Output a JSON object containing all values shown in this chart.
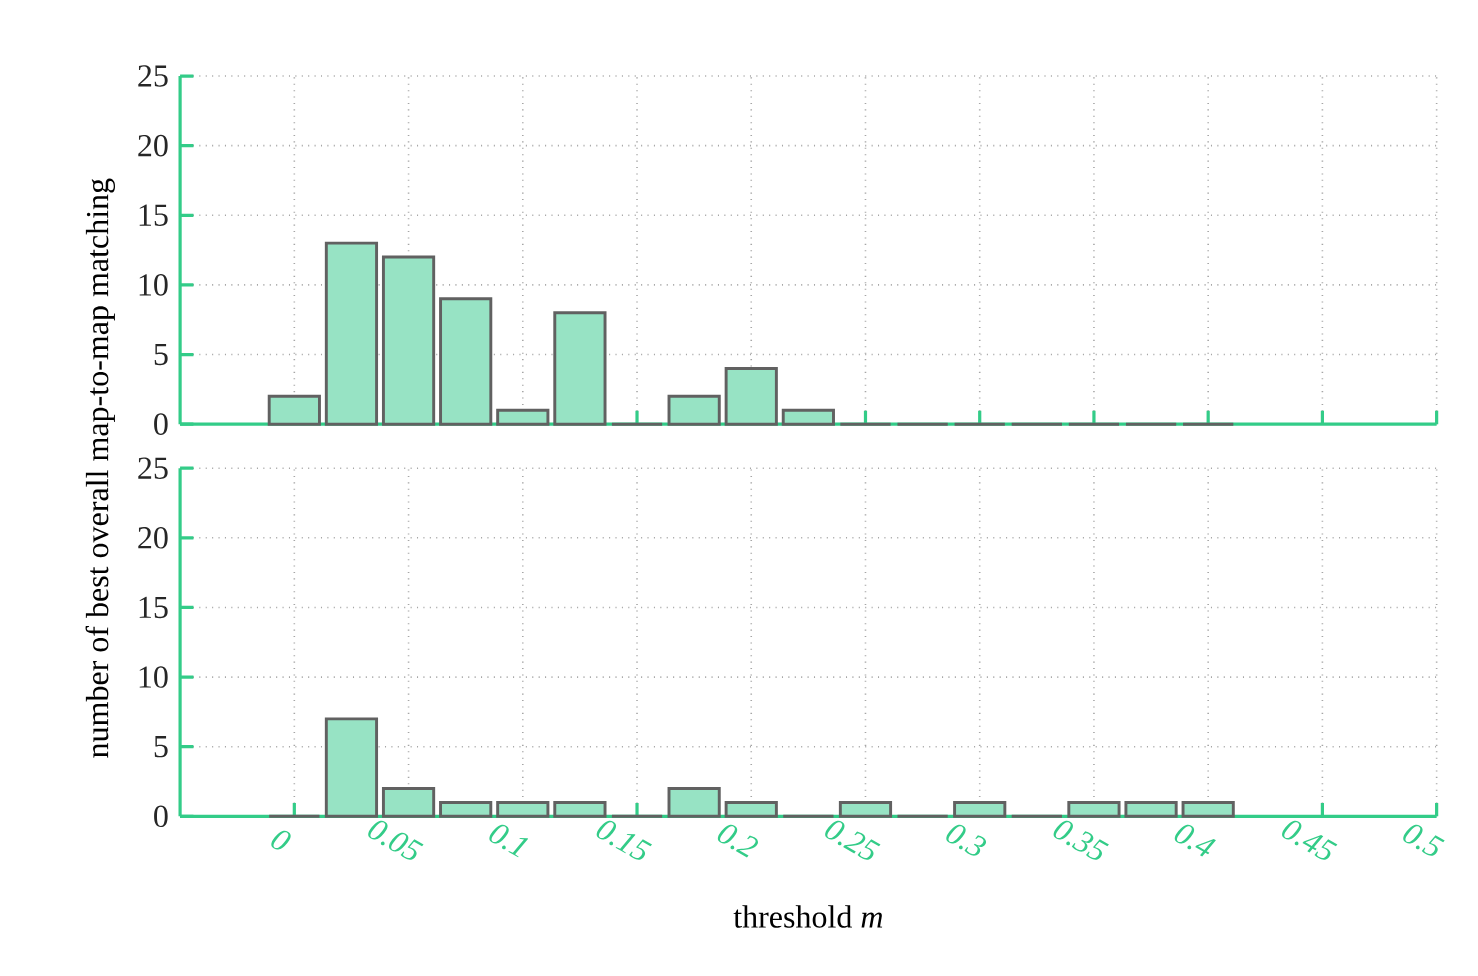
{
  "chart_data": [
    {
      "type": "histogram",
      "bins": [
        -0.0125,
        0.0125,
        0.0375,
        0.0625,
        0.0875,
        0.1125,
        0.1375,
        0.1625,
        0.1875,
        0.2125,
        0.2375,
        0.2625,
        0.2875,
        0.3125,
        0.3375,
        0.3625,
        0.3875,
        0.4125
      ],
      "values": [
        2,
        13,
        12,
        9,
        1,
        8,
        0,
        2,
        4,
        1,
        0,
        0,
        0,
        0,
        0,
        0,
        0
      ],
      "color": "#97e3c4",
      "xlim": [
        -0.05,
        0.5
      ],
      "xticks": [
        0,
        0.05,
        0.1,
        0.15,
        0.2,
        0.25,
        0.3,
        0.35,
        0.4,
        0.45,
        0.5
      ],
      "ylim": [
        0,
        25
      ],
      "yticks": [
        0,
        5,
        10,
        15,
        20,
        25
      ],
      "grid": true,
      "tick_labels": "y"
    },
    {
      "type": "histogram",
      "bins": [
        -0.0125,
        0.0125,
        0.0375,
        0.0625,
        0.0875,
        0.1125,
        0.1375,
        0.1625,
        0.1875,
        0.2125,
        0.2375,
        0.2625,
        0.2875,
        0.3125,
        0.3375,
        0.3625,
        0.3875,
        0.4125
      ],
      "values": [
        0,
        7,
        2,
        1,
        1,
        1,
        0,
        2,
        1,
        0,
        1,
        0,
        1,
        0,
        1,
        1,
        1
      ],
      "color": "#97e3c4",
      "xlim": [
        -0.05,
        0.5
      ],
      "xticks": [
        0,
        0.05,
        0.1,
        0.15,
        0.2,
        0.25,
        0.3,
        0.35,
        0.4,
        0.45,
        0.5
      ],
      "ylim": [
        0,
        25
      ],
      "yticks": [
        0,
        5,
        10,
        15,
        20,
        25
      ],
      "grid": true,
      "xlabel": "threshold *m*",
      "ylabel": "number of best overall map-to-map matching"
    }
  ]
}
